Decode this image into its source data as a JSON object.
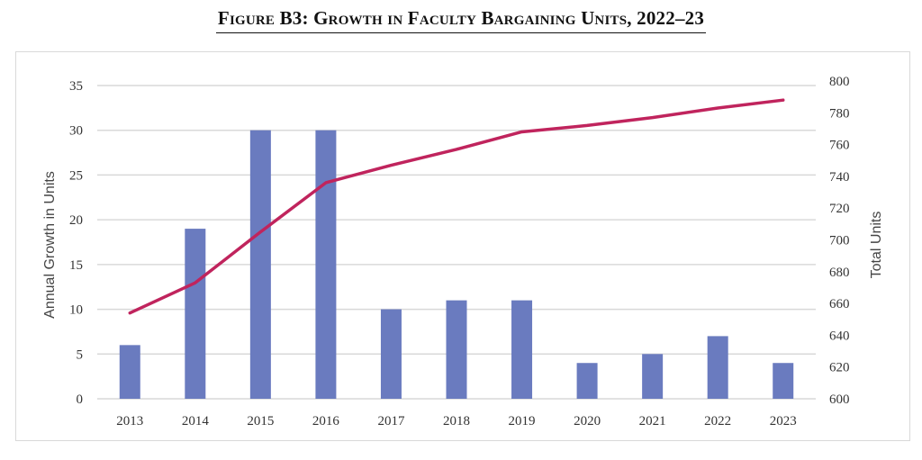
{
  "figure": {
    "title": "Figure B3: Growth in Faculty Bargaining Units, 2022–23"
  },
  "chart_data": {
    "type": "bar",
    "categories": [
      "2013",
      "2014",
      "2015",
      "2016",
      "2017",
      "2018",
      "2019",
      "2020",
      "2021",
      "2022",
      "2023"
    ],
    "series": [
      {
        "type": "bar",
        "axis": "left",
        "color": "#6a7bbf",
        "values": [
          6,
          19,
          30,
          30,
          10,
          11,
          11,
          4,
          5,
          7,
          4
        ]
      },
      {
        "type": "line",
        "axis": "right",
        "color": "#c0245d",
        "values": [
          654,
          673,
          705,
          736,
          747,
          757,
          768,
          772,
          777,
          783,
          788
        ]
      }
    ],
    "ylabel": "Annual Growth in Units",
    "y2label": "Total Units",
    "ylim": [
      0,
      35
    ],
    "y2lim": [
      600,
      800
    ],
    "yticks": [
      "0",
      "5",
      "10",
      "15",
      "20",
      "25",
      "30",
      "35"
    ],
    "y2ticks": [
      "600",
      "620",
      "640",
      "660",
      "680",
      "700",
      "720",
      "740",
      "760",
      "780",
      "800"
    ],
    "grid": true,
    "legend": "none"
  }
}
